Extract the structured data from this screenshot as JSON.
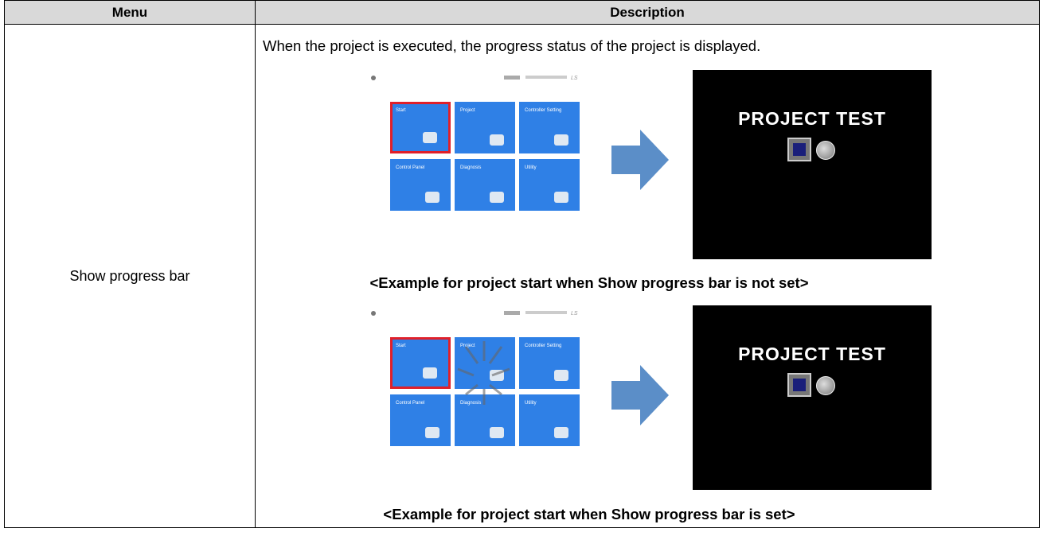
{
  "table": {
    "headers": [
      "Menu",
      "Description"
    ],
    "rows": [
      {
        "menu": "Show progress bar",
        "description": "When the project is executed, the progress status of the project is displayed.",
        "examples": [
          {
            "tiles": [
              "Start",
              "Project",
              "Controller Setting",
              "Control Panel",
              "Diagnosis",
              "Utility"
            ],
            "screen_text": "PROJECT TEST",
            "caption": "<Example for project start when Show progress bar is not set>"
          },
          {
            "tiles": [
              "Start",
              "Project",
              "Controller Setting",
              "Control Panel",
              "Diagnosis",
              "Utility"
            ],
            "screen_text": "PROJECT TEST",
            "caption": "<Example for project start when Show progress bar is set>"
          }
        ]
      }
    ]
  }
}
